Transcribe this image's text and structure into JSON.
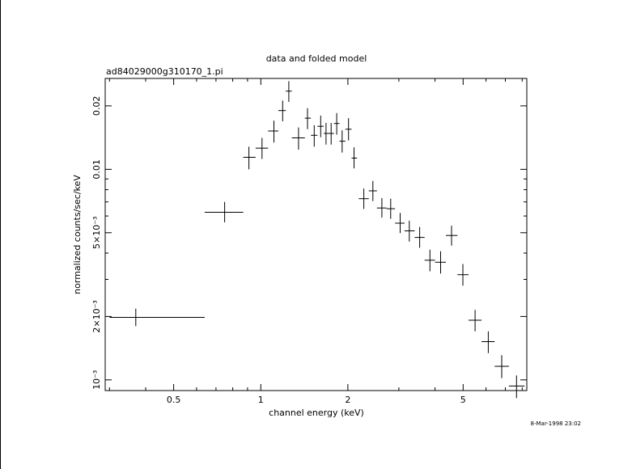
{
  "chart_data": {
    "type": "scatter",
    "title": "data and folded model",
    "subtitle": "ad84029000g310170_1.pi",
    "xlabel": "channel energy (keV)",
    "ylabel": "normalized counts/sec/keV",
    "x_scale": "log",
    "y_scale": "log",
    "xlim": [
      0.29,
      8.3
    ],
    "ylim": [
      0.00089,
      0.027
    ],
    "x_major_ticks": [
      0.5,
      1,
      2,
      5
    ],
    "x_tick_labels": [
      "0.5",
      "1",
      "2",
      "5"
    ],
    "y_major_ticks": [
      0.001,
      0.002,
      0.005,
      0.01,
      0.02
    ],
    "y_tick_labels": [
      "10⁻³",
      "2×10⁻³",
      "5×10⁻³",
      "0.01",
      "0.02"
    ],
    "series": [
      {
        "points": [
          {
            "x": 0.37,
            "xlo": 0.3,
            "xhi": 0.64,
            "y": 0.00198,
            "ylo": 0.0018,
            "yhi": 0.00218
          },
          {
            "x": 0.75,
            "xlo": 0.64,
            "xhi": 0.87,
            "y": 0.00625,
            "ylo": 0.0056,
            "yhi": 0.007
          },
          {
            "x": 0.91,
            "xlo": 0.87,
            "xhi": 0.96,
            "y": 0.0114,
            "ylo": 0.01,
            "yhi": 0.0128
          },
          {
            "x": 1.01,
            "xlo": 0.96,
            "xhi": 1.06,
            "y": 0.0126,
            "ylo": 0.0112,
            "yhi": 0.0141
          },
          {
            "x": 1.11,
            "xlo": 1.06,
            "xhi": 1.15,
            "y": 0.0152,
            "ylo": 0.0134,
            "yhi": 0.017
          },
          {
            "x": 1.19,
            "xlo": 1.15,
            "xhi": 1.22,
            "y": 0.019,
            "ylo": 0.0169,
            "yhi": 0.0212
          },
          {
            "x": 1.25,
            "xlo": 1.22,
            "xhi": 1.28,
            "y": 0.0235,
            "ylo": 0.0209,
            "yhi": 0.0262
          },
          {
            "x": 1.35,
            "xlo": 1.28,
            "xhi": 1.42,
            "y": 0.0141,
            "ylo": 0.0124,
            "yhi": 0.0158
          },
          {
            "x": 1.45,
            "xlo": 1.42,
            "xhi": 1.49,
            "y": 0.0175,
            "ylo": 0.0155,
            "yhi": 0.0195
          },
          {
            "x": 1.53,
            "xlo": 1.49,
            "xhi": 1.57,
            "y": 0.0145,
            "ylo": 0.0128,
            "yhi": 0.0162
          },
          {
            "x": 1.61,
            "xlo": 1.57,
            "xhi": 1.65,
            "y": 0.016,
            "ylo": 0.0142,
            "yhi": 0.018
          },
          {
            "x": 1.68,
            "xlo": 1.65,
            "xhi": 1.72,
            "y": 0.0148,
            "ylo": 0.0131,
            "yhi": 0.0166
          },
          {
            "x": 1.75,
            "xlo": 1.72,
            "xhi": 1.79,
            "y": 0.0148,
            "ylo": 0.0131,
            "yhi": 0.0166
          },
          {
            "x": 1.83,
            "xlo": 1.79,
            "xhi": 1.87,
            "y": 0.0165,
            "ylo": 0.0146,
            "yhi": 0.0185
          },
          {
            "x": 1.91,
            "xlo": 1.87,
            "xhi": 1.96,
            "y": 0.0136,
            "ylo": 0.012,
            "yhi": 0.0153
          },
          {
            "x": 2.01,
            "xlo": 1.96,
            "xhi": 2.06,
            "y": 0.0155,
            "ylo": 0.0137,
            "yhi": 0.0175
          },
          {
            "x": 2.1,
            "xlo": 2.06,
            "xhi": 2.15,
            "y": 0.0113,
            "ylo": 0.0101,
            "yhi": 0.0127
          },
          {
            "x": 2.27,
            "xlo": 2.18,
            "xhi": 2.36,
            "y": 0.00725,
            "ylo": 0.00648,
            "yhi": 0.0081
          },
          {
            "x": 2.44,
            "xlo": 2.36,
            "xhi": 2.52,
            "y": 0.0079,
            "ylo": 0.00706,
            "yhi": 0.0088
          },
          {
            "x": 2.62,
            "xlo": 2.52,
            "xhi": 2.72,
            "y": 0.00655,
            "ylo": 0.0059,
            "yhi": 0.0073
          },
          {
            "x": 2.81,
            "xlo": 2.72,
            "xhi": 2.91,
            "y": 0.0065,
            "ylo": 0.00582,
            "yhi": 0.00725
          },
          {
            "x": 3.03,
            "xlo": 2.91,
            "xhi": 3.14,
            "y": 0.00555,
            "ylo": 0.00498,
            "yhi": 0.0062
          },
          {
            "x": 3.26,
            "xlo": 3.14,
            "xhi": 3.4,
            "y": 0.0051,
            "ylo": 0.00454,
            "yhi": 0.0057
          },
          {
            "x": 3.54,
            "xlo": 3.4,
            "xhi": 3.68,
            "y": 0.00475,
            "ylo": 0.00424,
            "yhi": 0.00532
          },
          {
            "x": 3.84,
            "xlo": 3.68,
            "xhi": 4.0,
            "y": 0.0037,
            "ylo": 0.00328,
            "yhi": 0.00415
          },
          {
            "x": 4.18,
            "xlo": 4.0,
            "xhi": 4.36,
            "y": 0.00362,
            "ylo": 0.0032,
            "yhi": 0.00408
          },
          {
            "x": 4.56,
            "xlo": 4.36,
            "xhi": 4.78,
            "y": 0.00485,
            "ylo": 0.00434,
            "yhi": 0.0054
          },
          {
            "x": 4.99,
            "xlo": 4.78,
            "xhi": 5.22,
            "y": 0.00316,
            "ylo": 0.0028,
            "yhi": 0.00355
          },
          {
            "x": 5.5,
            "xlo": 5.22,
            "xhi": 5.79,
            "y": 0.00192,
            "ylo": 0.0017,
            "yhi": 0.00215
          },
          {
            "x": 6.11,
            "xlo": 5.79,
            "xhi": 6.43,
            "y": 0.00152,
            "ylo": 0.00134,
            "yhi": 0.0017
          },
          {
            "x": 6.8,
            "xlo": 6.43,
            "xhi": 7.2,
            "y": 0.00116,
            "ylo": 0.00102,
            "yhi": 0.00131
          },
          {
            "x": 7.65,
            "xlo": 7.2,
            "xhi": 8.15,
            "y": 0.000935,
            "ylo": 0.00082,
            "yhi": 0.00105
          }
        ]
      }
    ]
  },
  "timestamp": "8-Mar-1998 23:02"
}
